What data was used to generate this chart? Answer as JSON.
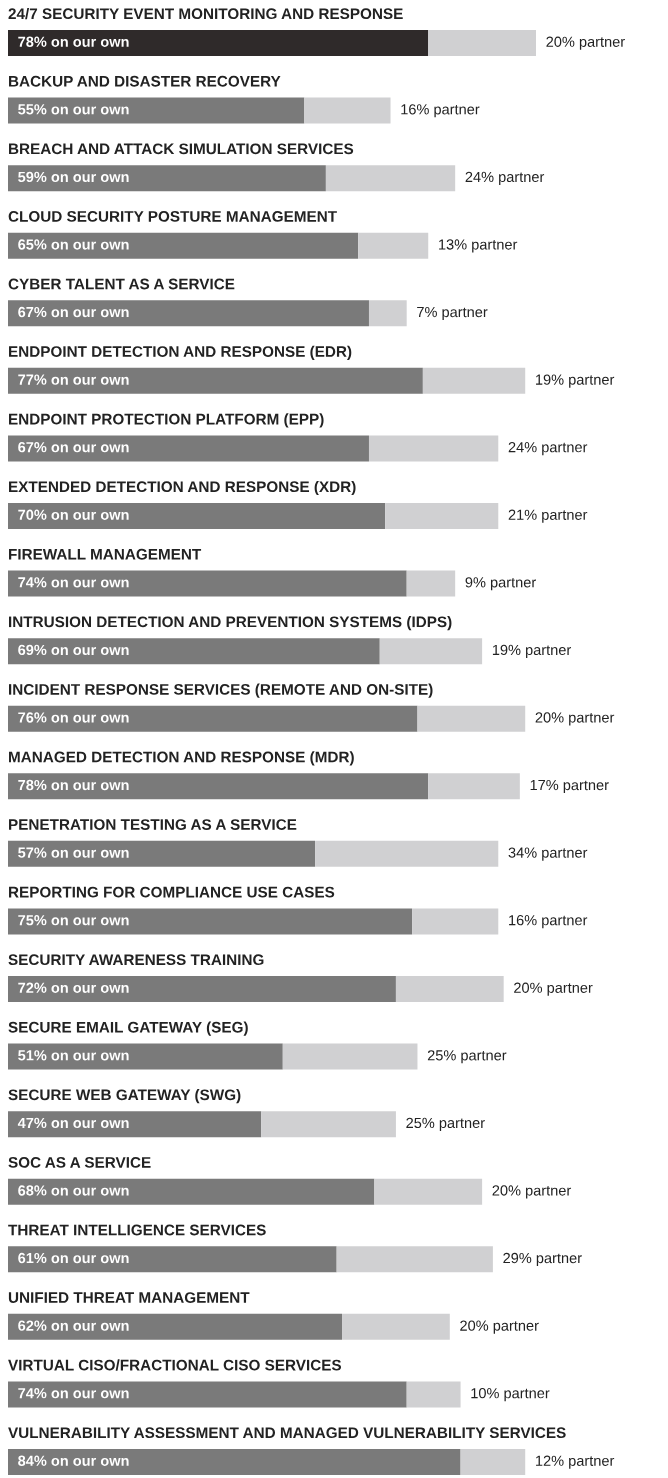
{
  "chart_data": {
    "type": "bar",
    "orientation": "horizontal",
    "stacked": true,
    "legend": false,
    "categories": [
      "24/7 SECURITY EVENT MONITORING AND RESPONSE",
      "BACKUP AND DISASTER RECOVERY",
      "BREACH AND ATTACK SIMULATION SERVICES",
      "CLOUD SECURITY POSTURE MANAGEMENT",
      "CYBER TALENT AS A SERVICE",
      "ENDPOINT DETECTION AND RESPONSE (EDR)",
      "ENDPOINT PROTECTION PLATFORM (EPP)",
      "EXTENDED DETECTION AND RESPONSE (XDR)",
      "FIREWALL MANAGEMENT",
      "INTRUSION DETECTION AND PREVENTION SYSTEMS (IDPS)",
      "INCIDENT RESPONSE SERVICES (REMOTE AND ON-SITE)",
      "MANAGED DETECTION AND RESPONSE (MDR)",
      "PENETRATION TESTING AS A SERVICE",
      "REPORTING FOR COMPLIANCE USE CASES",
      "SECURITY AWARENESS TRAINING",
      "SECURE EMAIL GATEWAY (SEG)",
      "SECURE WEB GATEWAY (SWG)",
      "SOC AS A SERVICE",
      "THREAT INTELLIGENCE SERVICES",
      "UNIFIED THREAT MANAGEMENT",
      "VIRTUAL CISO/FRACTIONAL CISO SERVICES",
      "VULNERABILITY ASSESSMENT AND MANAGED VULNERABILITY SERVICES"
    ],
    "series": [
      {
        "colors": [
          "#2f2a2a",
          "#7a7a7a",
          "#7a7a7a",
          "#7a7a7a",
          "#7a7a7a",
          "#7a7a7a",
          "#7a7a7a",
          "#7a7a7a",
          "#7a7a7a",
          "#7a7a7a",
          "#7a7a7a",
          "#7a7a7a",
          "#7a7a7a",
          "#7a7a7a",
          "#7a7a7a",
          "#7a7a7a",
          "#7a7a7a",
          "#7a7a7a",
          "#7a7a7a",
          "#7a7a7a",
          "#7a7a7a",
          "#7a7a7a"
        ],
        "values": [
          78,
          55,
          59,
          65,
          67,
          77,
          67,
          70,
          74,
          69,
          76,
          78,
          57,
          75,
          72,
          51,
          47,
          68,
          61,
          62,
          74,
          84
        ],
        "value_labels": [
          "78% on our own",
          "55% on our own",
          "59% on our own",
          "65% on our own",
          "67% on our own",
          "77% on our own",
          "67% on our own",
          "70% on our own",
          "74% on our own",
          "69% on our own",
          "76% on our own",
          "78% on our own",
          "57% on our own",
          "75% on our own",
          "72% on our own",
          "51% on our own",
          "47% on our own",
          "68% on our own",
          "61% on our own",
          "62% on our own",
          "74% on our own",
          "84% on our own"
        ]
      },
      {
        "color": "#d0d0d2",
        "values": [
          20,
          16,
          24,
          13,
          7,
          19,
          24,
          21,
          9,
          19,
          20,
          17,
          34,
          16,
          20,
          25,
          25,
          20,
          29,
          20,
          10,
          12
        ],
        "value_labels": [
          "20% partner",
          "16% partner",
          "24% partner",
          "13% partner",
          "7% partner",
          "19% partner",
          "24% partner",
          "21% partner",
          "9% partner",
          "19% partner",
          "20% partner",
          "17% partner",
          "34% partner",
          "16% partner",
          "20% partner",
          "25% partner",
          "25% partner",
          "20% partner",
          "29% partner",
          "20% partner",
          "10% partner",
          "12% partner"
        ]
      }
    ]
  }
}
